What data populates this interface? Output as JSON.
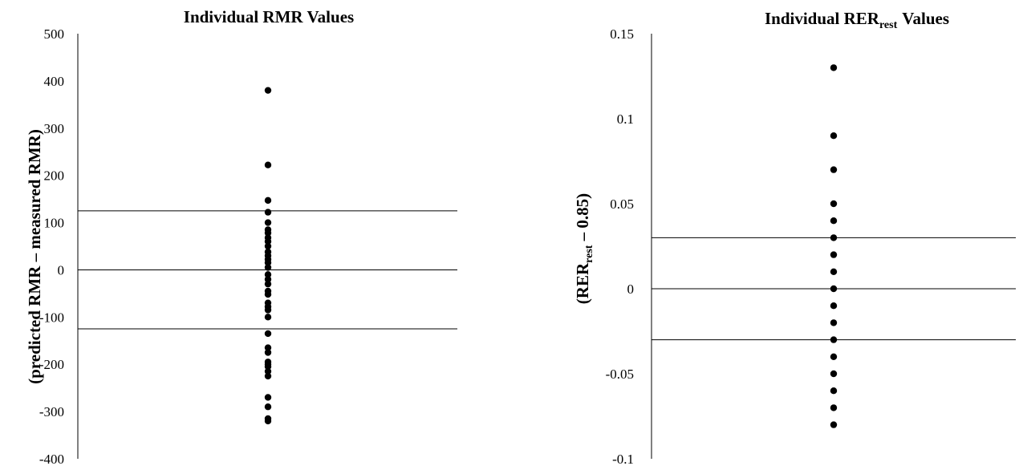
{
  "chart_data": [
    {
      "type": "scatter",
      "title": "Individual RMR Values",
      "ylabel": "(predicted RMR – measured RMR)",
      "ylim": [
        -400,
        500
      ],
      "yticks": [
        "500",
        "400",
        "300",
        "200",
        "100",
        "0",
        "-100",
        "-200",
        "-300",
        "-400"
      ],
      "yticks_values": [
        500,
        400,
        300,
        200,
        100,
        0,
        -100,
        -200,
        -300,
        -400
      ],
      "reference_lines": [
        125,
        0,
        -125
      ],
      "marker_color": "#000000",
      "values": [
        380,
        222,
        147,
        122,
        100,
        85,
        78,
        68,
        60,
        50,
        38,
        30,
        22,
        15,
        5,
        -10,
        -20,
        -30,
        -45,
        -52,
        -70,
        -78,
        -85,
        -100,
        -135,
        -165,
        -175,
        -195,
        -200,
        -205,
        -215,
        -225,
        -270,
        -290,
        -315,
        -320
      ]
    },
    {
      "type": "scatter",
      "title": {
        "main": "Individual RER",
        "sub": "rest",
        "tail": "Values"
      },
      "ylabel": {
        "prefix": "(RER",
        "sub": "rest",
        "suffix": " – 0.85)"
      },
      "ylim": [
        -0.1,
        0.15
      ],
      "yticks": [
        "0.15",
        "0.1",
        "0.05",
        "0",
        "-0.05",
        "-0.1"
      ],
      "yticks_values": [
        0.15,
        0.1,
        0.05,
        0,
        -0.05,
        -0.1
      ],
      "reference_lines": [
        0.03,
        0,
        -0.03
      ],
      "marker_color": "#000000",
      "values": [
        0.13,
        0.09,
        0.07,
        0.05,
        0.04,
        0.03,
        0.02,
        0.01,
        0,
        -0.01,
        -0.02,
        -0.03,
        -0.04,
        -0.05,
        -0.06,
        -0.07,
        -0.08
      ]
    }
  ]
}
